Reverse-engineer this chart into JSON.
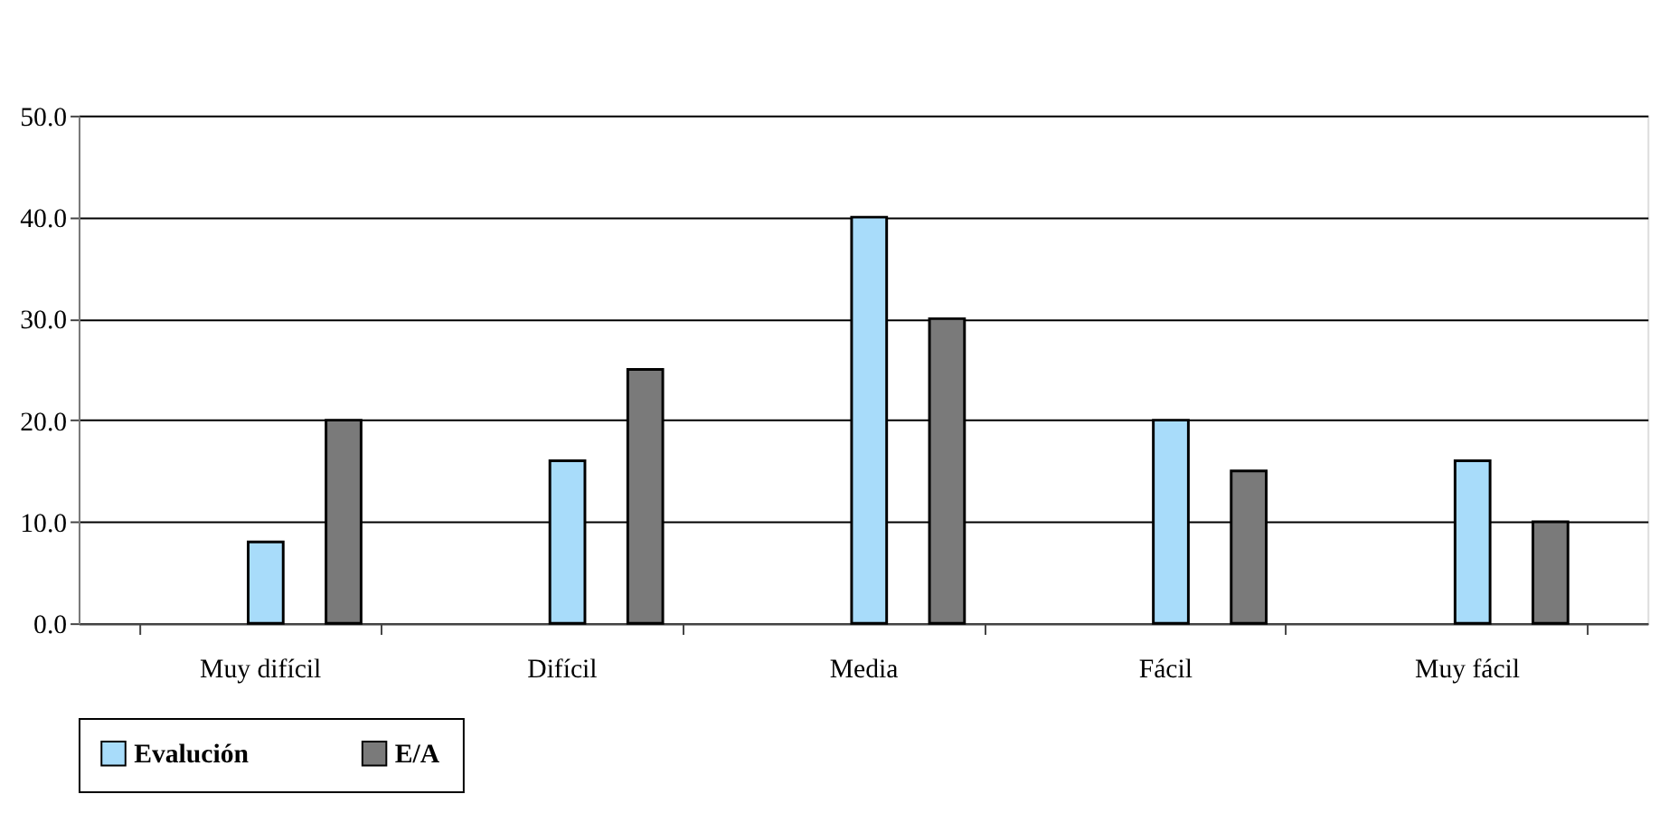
{
  "chart_data": {
    "type": "bar",
    "categories": [
      "Muy difícil",
      "Difícil",
      "Media",
      "Fácil",
      "Muy fácil"
    ],
    "series": [
      {
        "name": "Evalución",
        "color": "#a8dcfa",
        "values": [
          8,
          16,
          40,
          20,
          16
        ]
      },
      {
        "name": "E/A",
        "color": "#7a7a7a",
        "values": [
          20,
          25,
          30,
          15,
          10
        ]
      }
    ],
    "ylim": [
      0,
      50
    ],
    "yticks": [
      {
        "value": 0,
        "label": "0.0"
      },
      {
        "value": 10,
        "label": "10.0"
      },
      {
        "value": 20,
        "label": "20.0"
      },
      {
        "value": 30,
        "label": "30.0"
      },
      {
        "value": 40,
        "label": "40.0"
      },
      {
        "value": 50,
        "label": "50.0"
      }
    ],
    "grid": "y",
    "legend": "bottom"
  }
}
